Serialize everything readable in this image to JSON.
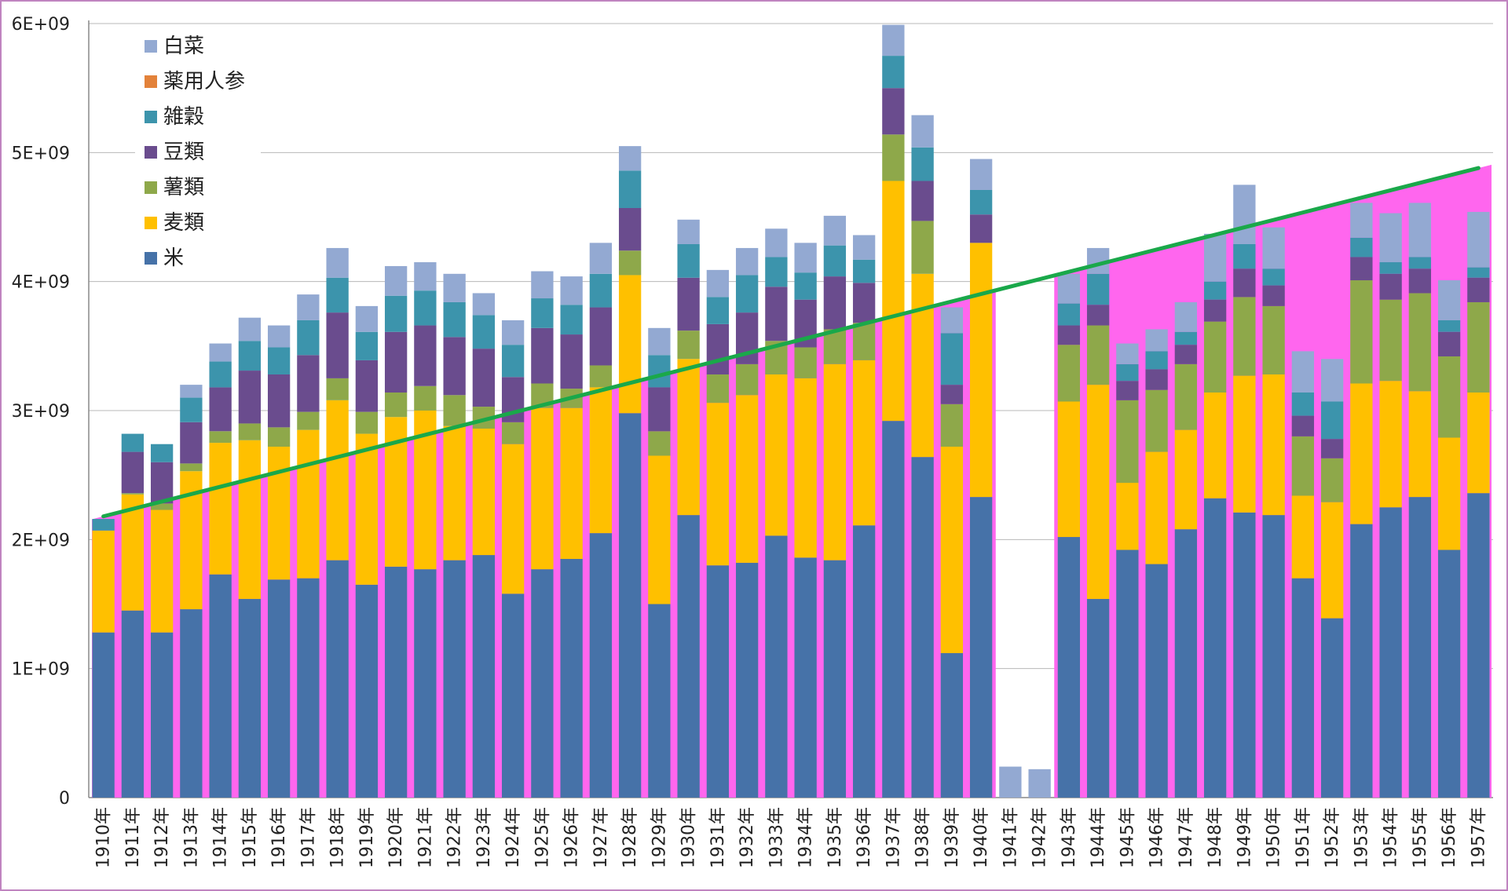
{
  "chart_data": {
    "type": "bar",
    "stacked": true,
    "categories": [
      "1910年",
      "1911年",
      "1912年",
      "1913年",
      "1914年",
      "1915年",
      "1916年",
      "1917年",
      "1918年",
      "1919年",
      "1920年",
      "1921年",
      "1922年",
      "1923年",
      "1924年",
      "1925年",
      "1926年",
      "1927年",
      "1928年",
      "1929年",
      "1930年",
      "1931年",
      "1932年",
      "1933年",
      "1934年",
      "1935年",
      "1936年",
      "1937年",
      "1938年",
      "1939年",
      "1940年",
      "1941年",
      "1942年",
      "1943年",
      "1944年",
      "1945年",
      "1946年",
      "1947年",
      "1948年",
      "1949年",
      "1950年",
      "1951年",
      "1952年",
      "1953年",
      "1954年",
      "1955年",
      "1956年",
      "1957年"
    ],
    "series": [
      {
        "name": "米",
        "color": "#4672a8",
        "values": [
          1280000000.0,
          1450000000.0,
          1280000000.0,
          1460000000.0,
          1730000000.0,
          1540000000.0,
          1690000000.0,
          1700000000.0,
          1840000000.0,
          1650000000.0,
          1790000000.0,
          1770000000.0,
          1840000000.0,
          1880000000.0,
          1580000000.0,
          1770000000.0,
          1850000000.0,
          2050000000.0,
          2980000000.0,
          1500000000.0,
          2190000000.0,
          1800000000.0,
          1820000000.0,
          2030000000.0,
          1860000000.0,
          1840000000.0,
          2110000000.0,
          2920000000.0,
          2640000000.0,
          1120000000.0,
          2330000000.0,
          0,
          0,
          2020000000.0,
          1540000000.0,
          1920000000.0,
          1810000000.0,
          2080000000.0,
          2320000000.0,
          2210000000.0,
          2190000000.0,
          1700000000.0,
          1390000000.0,
          2120000000.0,
          2250000000.0,
          2330000000.0,
          1920000000.0,
          2360000000.0
        ]
      },
      {
        "name": "麦類",
        "color": "#ffc000",
        "values": [
          790000000.0,
          900000000.0,
          950000000.0,
          1070000000.0,
          1020000000.0,
          1230000000.0,
          1030000000.0,
          1150000000.0,
          1240000000.0,
          1170000000.0,
          1160000000.0,
          1230000000.0,
          1040000000.0,
          980000000.0,
          1160000000.0,
          1250000000.0,
          1170000000.0,
          1130000000.0,
          1070000000.0,
          1150000000.0,
          1210000000.0,
          1260000000.0,
          1300000000.0,
          1250000000.0,
          1390000000.0,
          1520000000.0,
          1280000000.0,
          1860000000.0,
          1420000000.0,
          1600000000.0,
          1970000000.0,
          0,
          0,
          1050000000.0,
          1660000000.0,
          520000000.0,
          870000000.0,
          770000000.0,
          820000000.0,
          1060000000.0,
          1090000000.0,
          640000000.0,
          900000000.0,
          1090000000.0,
          980000000.0,
          820000000.0,
          870000000.0,
          780000000.0
        ]
      },
      {
        "name": "薯類",
        "color": "#8ea84a",
        "values": [
          0,
          10000000.0,
          50000000.0,
          60000000.0,
          90000000.0,
          130000000.0,
          150000000.0,
          140000000.0,
          170000000.0,
          170000000.0,
          190000000.0,
          190000000.0,
          240000000.0,
          170000000.0,
          170000000.0,
          190000000.0,
          150000000.0,
          170000000.0,
          190000000.0,
          190000000.0,
          220000000.0,
          220000000.0,
          240000000.0,
          260000000.0,
          240000000.0,
          270000000.0,
          290000000.0,
          360000000.0,
          410000000.0,
          330000000.0,
          0,
          0,
          0,
          440000000.0,
          460000000.0,
          640000000.0,
          480000000.0,
          510000000.0,
          550000000.0,
          610000000.0,
          530000000.0,
          460000000.0,
          340000000.0,
          800000000.0,
          630000000.0,
          760000000.0,
          630000000.0,
          700000000.0
        ]
      },
      {
        "name": "豆類",
        "color": "#6a4c8e",
        "values": [
          0,
          320000000.0,
          320000000.0,
          320000000.0,
          340000000.0,
          410000000.0,
          410000000.0,
          440000000.0,
          510000000.0,
          400000000.0,
          470000000.0,
          470000000.0,
          450000000.0,
          450000000.0,
          350000000.0,
          430000000.0,
          420000000.0,
          450000000.0,
          330000000.0,
          340000000.0,
          410000000.0,
          390000000.0,
          400000000.0,
          420000000.0,
          370000000.0,
          410000000.0,
          310000000.0,
          360000000.0,
          310000000.0,
          150000000.0,
          220000000.0,
          0,
          0,
          150000000.0,
          160000000.0,
          150000000.0,
          160000000.0,
          150000000.0,
          170000000.0,
          220000000.0,
          160000000.0,
          160000000.0,
          150000000.0,
          180000000.0,
          200000000.0,
          190000000.0,
          190000000.0,
          190000000.0
        ]
      },
      {
        "name": "雑穀",
        "color": "#3c94ac",
        "values": [
          90000000.0,
          140000000.0,
          140000000.0,
          190000000.0,
          200000000.0,
          230000000.0,
          210000000.0,
          270000000.0,
          270000000.0,
          220000000.0,
          280000000.0,
          270000000.0,
          270000000.0,
          260000000.0,
          250000000.0,
          230000000.0,
          230000000.0,
          260000000.0,
          290000000.0,
          250000000.0,
          260000000.0,
          210000000.0,
          290000000.0,
          230000000.0,
          210000000.0,
          240000000.0,
          180000000.0,
          250000000.0,
          260000000.0,
          400000000.0,
          190000000.0,
          0,
          0,
          170000000.0,
          240000000.0,
          130000000.0,
          140000000.0,
          100000000.0,
          140000000.0,
          190000000.0,
          130000000.0,
          180000000.0,
          290000000.0,
          150000000.0,
          90000000.0,
          90000000.0,
          90000000.0,
          80000000.0
        ]
      },
      {
        "name": "薬用人参",
        "color": "#e3823a",
        "values": [
          0,
          0,
          0,
          0,
          0,
          0,
          0,
          0,
          0,
          0,
          0,
          0,
          0,
          0,
          0,
          0,
          0,
          0,
          0,
          0,
          0,
          0,
          0,
          0,
          0,
          0,
          0,
          0,
          0,
          0,
          0,
          0,
          0,
          0,
          0,
          0,
          0,
          0,
          0,
          0,
          0,
          0,
          0,
          0,
          0,
          0,
          0,
          0
        ]
      },
      {
        "name": "白菜",
        "color": "#93a9d2",
        "values": [
          0,
          0,
          0,
          100000000.0,
          140000000.0,
          180000000.0,
          170000000.0,
          200000000.0,
          230000000.0,
          200000000.0,
          230000000.0,
          220000000.0,
          220000000.0,
          170000000.0,
          190000000.0,
          210000000.0,
          220000000.0,
          240000000.0,
          190000000.0,
          210000000.0,
          190000000.0,
          210000000.0,
          210000000.0,
          220000000.0,
          230000000.0,
          230000000.0,
          190000000.0,
          240000000.0,
          250000000.0,
          200000000.0,
          240000000.0,
          240000000.0,
          220000000.0,
          230000000.0,
          200000000.0,
          160000000.0,
          170000000.0,
          230000000.0,
          370000000.0,
          460000000.0,
          320000000.0,
          320000000.0,
          330000000.0,
          270000000.0,
          380000000.0,
          420000000.0,
          310000000.0,
          430000000.0
        ]
      }
    ],
    "yticks": [
      "0",
      "1E+09",
      "2E+09",
      "3E+09",
      "4E+09",
      "5E+09",
      "6E+09"
    ],
    "ylim": [
      0,
      6000000000.0
    ],
    "legend_position": "top-left",
    "trend_line": {
      "color": "#1aa84a",
      "from": [
        "1910年",
        2180000000.0
      ],
      "to": [
        "1957年",
        4880000000.0
      ]
    },
    "background_area": {
      "color": "#ff66ee",
      "from_value": 2180000000.0,
      "to_value": 4880000000.0,
      "gap": [
        "1941年",
        "1942年"
      ]
    },
    "grid": true,
    "title": "",
    "xlabel": "",
    "ylabel": ""
  }
}
